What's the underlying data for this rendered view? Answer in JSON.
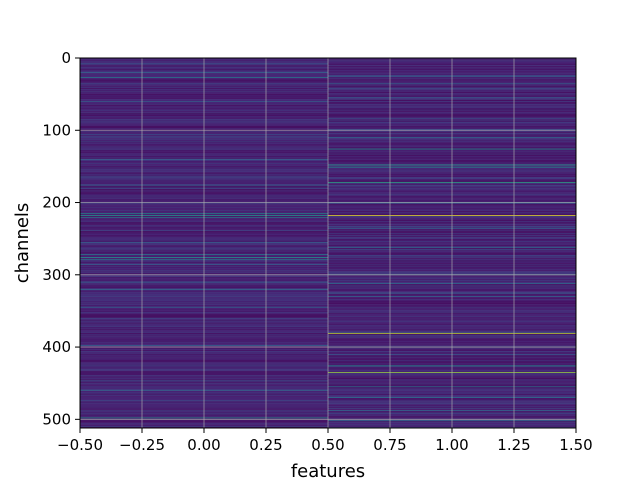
{
  "chart_data": {
    "type": "heatmap",
    "title": "",
    "xlabel": "features",
    "ylabel": "channels",
    "xlim": [
      -0.5,
      1.5
    ],
    "ylim": [
      512,
      0
    ],
    "x_ticks": [
      "−0.50",
      "−0.25",
      "0.00",
      "0.25",
      "0.50",
      "0.75",
      "1.00",
      "1.25",
      "1.50"
    ],
    "x_tick_values": [
      -0.5,
      -0.25,
      0.0,
      0.25,
      0.5,
      0.75,
      1.0,
      1.25,
      1.5
    ],
    "y_ticks": [
      "0",
      "100",
      "200",
      "300",
      "400",
      "500"
    ],
    "y_tick_values": [
      0,
      100,
      200,
      300,
      400,
      500
    ],
    "grid": true,
    "colormap": "viridis",
    "columns": [
      0,
      1
    ],
    "rows": 512,
    "base_value": 0.12,
    "highlights": {
      "column_0": [
        {
          "row": 8,
          "v": 0.28
        },
        {
          "row": 20,
          "v": 0.33
        },
        {
          "row": 27,
          "v": 0.42
        },
        {
          "row": 60,
          "v": 0.3
        },
        {
          "row": 96,
          "v": 0.04
        },
        {
          "row": 140,
          "v": 0.3
        },
        {
          "row": 176,
          "v": 0.32
        },
        {
          "row": 215,
          "v": 0.46
        },
        {
          "row": 218,
          "v": 0.52
        },
        {
          "row": 221,
          "v": 0.44
        },
        {
          "row": 255,
          "v": 0.32
        },
        {
          "row": 272,
          "v": 0.42
        },
        {
          "row": 276,
          "v": 0.5
        },
        {
          "row": 279,
          "v": 0.4
        },
        {
          "row": 310,
          "v": 0.33
        },
        {
          "row": 320,
          "v": 0.36
        },
        {
          "row": 345,
          "v": 0.3
        },
        {
          "row": 398,
          "v": 0.34
        },
        {
          "row": 460,
          "v": 0.33
        },
        {
          "row": 498,
          "v": 0.48
        }
      ],
      "column_1": [
        {
          "row": 25,
          "v": 0.35
        },
        {
          "row": 35,
          "v": 0.3
        },
        {
          "row": 55,
          "v": 0.3
        },
        {
          "row": 110,
          "v": 0.34
        },
        {
          "row": 126,
          "v": 0.5
        },
        {
          "row": 148,
          "v": 0.56
        },
        {
          "row": 151,
          "v": 0.48
        },
        {
          "row": 172,
          "v": 0.62
        },
        {
          "row": 200,
          "v": 0.36
        },
        {
          "row": 218,
          "v": 0.98
        },
        {
          "row": 236,
          "v": 0.32
        },
        {
          "row": 262,
          "v": 0.35
        },
        {
          "row": 300,
          "v": 0.36
        },
        {
          "row": 312,
          "v": 0.38
        },
        {
          "row": 330,
          "v": 0.34
        },
        {
          "row": 381,
          "v": 0.92
        },
        {
          "row": 400,
          "v": 0.35
        },
        {
          "row": 426,
          "v": 0.5
        },
        {
          "row": 435,
          "v": 0.86
        },
        {
          "row": 455,
          "v": 0.4
        },
        {
          "row": 470,
          "v": 0.38
        },
        {
          "row": 488,
          "v": 0.36
        },
        {
          "row": 502,
          "v": 0.4
        }
      ]
    }
  }
}
